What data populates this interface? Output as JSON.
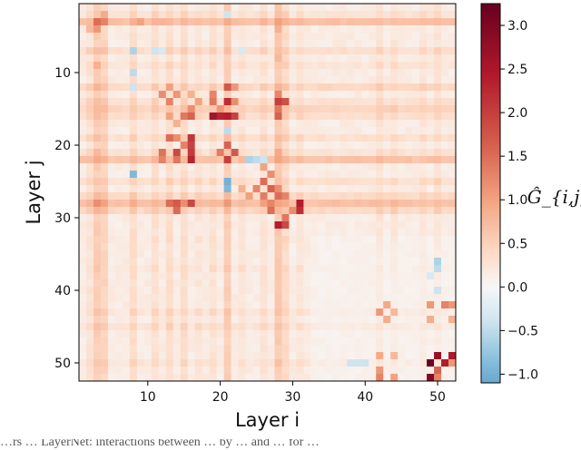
{
  "chart_data": {
    "type": "heatmap",
    "xlabel": "Layer i",
    "ylabel": "Layer j",
    "colorbar_label": "Ĝ_{i,j}",
    "n": 52,
    "xticks": [
      10,
      20,
      30,
      40,
      50
    ],
    "yticks": [
      10,
      20,
      30,
      40,
      50
    ],
    "colorbar_range": [
      -1.1,
      3.25
    ],
    "colorbar_ticks": [
      "−1.0",
      "−0.5",
      "0.0",
      "0.5",
      "1.0",
      "1.5",
      "2.0",
      "2.5",
      "3.0"
    ],
    "colormap": "RdBu_r",
    "negative_color": "#92c5de",
    "zero_color": "#f7f7f7",
    "positive_color": "#67001f",
    "base_value": 0.15,
    "row_band_values": {
      "2": 0.35,
      "3": 0.9,
      "7": 0.45,
      "9": 0.3,
      "12": 0.55,
      "14": 0.4,
      "15": 0.6,
      "16": 0.45,
      "19": 0.4,
      "21": 0.35,
      "22": 0.85,
      "25": 0.4,
      "27": 0.5,
      "28": 0.9,
      "29": 0.55,
      "33": 0.2,
      "37": 0.25,
      "43": 0.3,
      "45": 0.35,
      "50": 0.3
    },
    "col_band_values": {
      "2": 0.35,
      "3": 0.7,
      "4": 0.6,
      "8": 0.45,
      "11": 0.4,
      "13": 0.45,
      "15": 0.45,
      "17": 0.3,
      "19": 0.35,
      "21": 0.7,
      "23": 0.3,
      "26": 0.35,
      "28": 0.75,
      "29": 0.5,
      "31": 0.3,
      "42": 0.35,
      "44": 0.3,
      "48": 0.3,
      "50": 0.35
    },
    "strong_cells": [
      {
        "i": 3,
        "j": 3,
        "v": 1.5
      },
      {
        "i": 4,
        "j": 3,
        "v": 1.3
      },
      {
        "i": 4,
        "j": 2,
        "v": 0.9
      },
      {
        "i": 9,
        "j": 3,
        "v": 1.0
      },
      {
        "i": 12,
        "j": 3,
        "v": 0.8
      },
      {
        "i": 21,
        "j": 3,
        "v": 0.9
      },
      {
        "i": 28,
        "j": 3,
        "v": 0.8
      },
      {
        "i": 3,
        "j": 12,
        "v": 0.8
      },
      {
        "i": 12,
        "j": 13,
        "v": 1.2
      },
      {
        "i": 13,
        "j": 14,
        "v": 1.3
      },
      {
        "i": 17,
        "j": 14,
        "v": 1.0
      },
      {
        "i": 19,
        "j": 14,
        "v": 1.4
      },
      {
        "i": 21,
        "j": 12,
        "v": 1.7
      },
      {
        "i": 21,
        "j": 14,
        "v": 2.2
      },
      {
        "i": 21,
        "j": 16,
        "v": 2.4
      },
      {
        "i": 19,
        "j": 16,
        "v": 2.6
      },
      {
        "i": 20,
        "j": 16,
        "v": 2.3
      },
      {
        "i": 16,
        "j": 16,
        "v": 1.6
      },
      {
        "i": 15,
        "j": 16,
        "v": 1.4
      },
      {
        "i": 13,
        "j": 16,
        "v": 1.0
      },
      {
        "i": 16,
        "j": 19,
        "v": 2.1
      },
      {
        "i": 13,
        "j": 19,
        "v": 1.5
      },
      {
        "i": 15,
        "j": 20,
        "v": 1.3
      },
      {
        "i": 12,
        "j": 22,
        "v": 1.3
      },
      {
        "i": 14,
        "j": 22,
        "v": 1.4
      },
      {
        "i": 16,
        "j": 22,
        "v": 2.3
      },
      {
        "i": 21,
        "j": 20,
        "v": 1.6
      },
      {
        "i": 21,
        "j": 22,
        "v": 2.0
      },
      {
        "i": 28,
        "j": 14,
        "v": 2.0
      },
      {
        "i": 29,
        "j": 14,
        "v": 1.8
      },
      {
        "i": 28,
        "j": 15,
        "v": 1.4
      },
      {
        "i": 26,
        "j": 23,
        "v": 1.0
      },
      {
        "i": 27,
        "j": 24,
        "v": 1.2
      },
      {
        "i": 26,
        "j": 25,
        "v": 1.5
      },
      {
        "i": 27,
        "j": 26,
        "v": 1.6
      },
      {
        "i": 28,
        "j": 27,
        "v": 1.5
      },
      {
        "i": 29,
        "j": 27,
        "v": 1.3
      },
      {
        "i": 28,
        "j": 26,
        "v": 1.2
      },
      {
        "i": 31,
        "j": 28,
        "v": 2.4
      },
      {
        "i": 31,
        "j": 29,
        "v": 2.2
      },
      {
        "i": 28,
        "j": 31,
        "v": 2.4
      },
      {
        "i": 29,
        "j": 30,
        "v": 1.4
      },
      {
        "i": 27,
        "j": 29,
        "v": 1.5
      },
      {
        "i": 3,
        "j": 28,
        "v": 1.2
      },
      {
        "i": 4,
        "j": 28,
        "v": 1.0
      },
      {
        "i": 13,
        "j": 28,
        "v": 1.5
      },
      {
        "i": 16,
        "j": 28,
        "v": 1.9
      },
      {
        "i": 8,
        "j": 28,
        "v": 0.9
      },
      {
        "i": 21,
        "j": 28,
        "v": 1.1
      },
      {
        "i": 42,
        "j": 43,
        "v": 1.1
      },
      {
        "i": 43,
        "j": 44,
        "v": 0.9
      },
      {
        "i": 42,
        "j": 52,
        "v": 1.3
      },
      {
        "i": 44,
        "j": 52,
        "v": 1.0
      },
      {
        "i": 49,
        "j": 42,
        "v": 1.1
      },
      {
        "i": 51,
        "j": 42,
        "v": 1.3
      },
      {
        "i": 49,
        "j": 44,
        "v": 0.9
      },
      {
        "i": 49,
        "j": 50,
        "v": 3.2
      },
      {
        "i": 51,
        "j": 50,
        "v": 2.4
      },
      {
        "i": 50,
        "j": 51,
        "v": 1.6
      },
      {
        "i": 49,
        "j": 52,
        "v": 2.9
      },
      {
        "i": 50,
        "j": 52,
        "v": 1.3
      }
    ],
    "negative_cells": [
      {
        "i": 8,
        "j": 7,
        "v": -0.6
      },
      {
        "i": 8,
        "j": 10,
        "v": -0.5
      },
      {
        "i": 8,
        "j": 24,
        "v": -0.9
      },
      {
        "i": 8,
        "j": 12,
        "v": -0.4
      },
      {
        "i": 21,
        "j": 25,
        "v": -1.0
      },
      {
        "i": 21,
        "j": 26,
        "v": -0.9
      },
      {
        "i": 21,
        "j": 2,
        "v": -0.4
      },
      {
        "i": 21,
        "j": 18,
        "v": -0.5
      },
      {
        "i": 24,
        "j": 22,
        "v": -0.6
      },
      {
        "i": 25,
        "j": 22,
        "v": -0.5
      },
      {
        "i": 26,
        "j": 22,
        "v": -0.4
      },
      {
        "i": 11,
        "j": 7,
        "v": -0.4
      },
      {
        "i": 12,
        "j": 7,
        "v": -0.3
      },
      {
        "i": 23,
        "j": 7,
        "v": -0.3
      },
      {
        "i": 50,
        "j": 36,
        "v": -0.6
      },
      {
        "i": 50,
        "j": 37,
        "v": -0.5
      },
      {
        "i": 50,
        "j": 40,
        "v": -0.4
      },
      {
        "i": 49,
        "j": 38,
        "v": -0.3
      },
      {
        "i": 38,
        "j": 50,
        "v": -0.4
      },
      {
        "i": 39,
        "j": 50,
        "v": -0.4
      },
      {
        "i": 40,
        "j": 50,
        "v": -0.4
      }
    ]
  },
  "caption_fragment": "…rs … LayerNet: interactions between … by … and … for …"
}
